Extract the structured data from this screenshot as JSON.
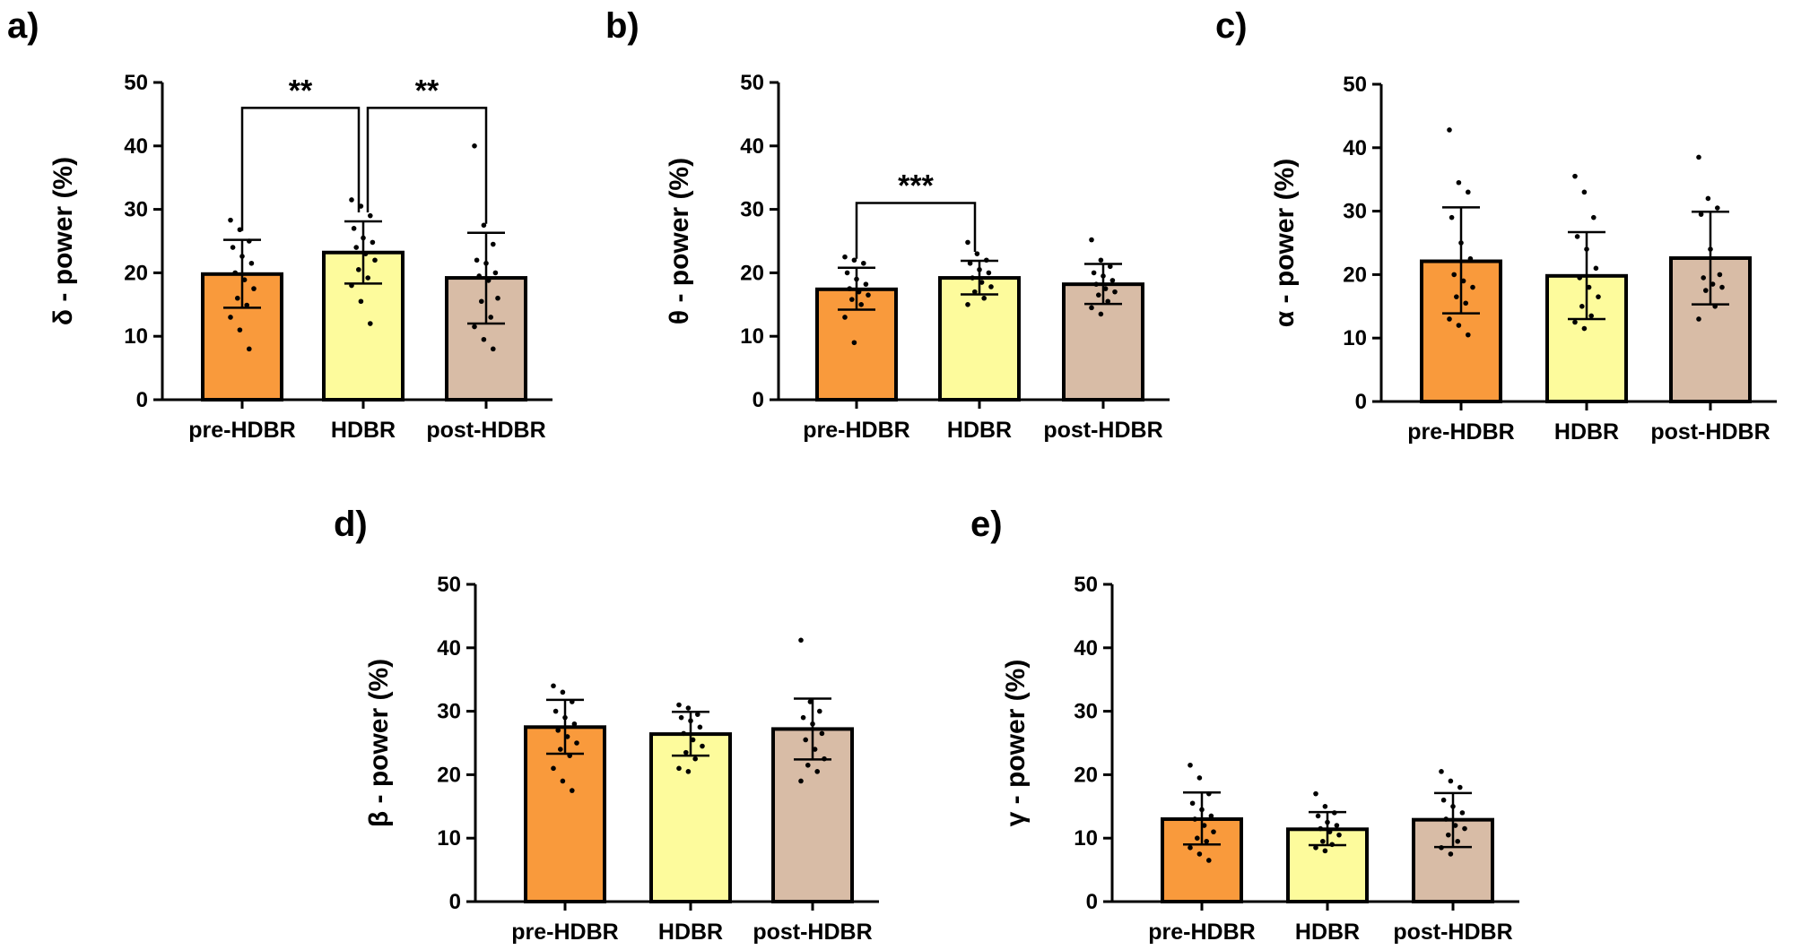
{
  "figure": {
    "panel_count": 5
  },
  "colors": {
    "pre_HDBR": "#f99a3c",
    "HDBR": "#fdfb9c",
    "post_HDBR": "#d8bca6",
    "outline": "#000000"
  },
  "chart_data": [
    {
      "panel": "a)",
      "type": "bar",
      "ylabel": "δ - power (%)",
      "ylim": [
        0,
        50
      ],
      "yticks": [
        "0",
        "10",
        "20",
        "30",
        "40",
        "50"
      ],
      "categories": [
        "pre-HDBR",
        "HDBR",
        "post-HDBR"
      ],
      "values": [
        19.8,
        23.2,
        19.2
      ],
      "error_low": [
        14.5,
        18.3,
        12.0
      ],
      "error_high": [
        25.2,
        28.1,
        26.3
      ],
      "points": [
        [
          28.3,
          26.8,
          25.0,
          24.0,
          22.6,
          21.5,
          20.0,
          18.9,
          17.5,
          16.0,
          14.9,
          13.0,
          11.0,
          8.0
        ],
        [
          31.5,
          30.5,
          29.0,
          27.0,
          25.5,
          24.8,
          24.0,
          23.0,
          22.0,
          20.5,
          19.2,
          18.0,
          15.5,
          12.0
        ],
        [
          40.0,
          27.5,
          24.5,
          22.0,
          21.5,
          20.0,
          19.5,
          18.8,
          16.0,
          15.5,
          13.0,
          11.5,
          9.5,
          8.0
        ]
      ],
      "significance": [
        {
          "from": 0,
          "to": 1,
          "label": "**",
          "y": 46
        },
        {
          "from": 1,
          "to": 2,
          "label": "**",
          "y": 46
        }
      ]
    },
    {
      "panel": "b)",
      "type": "bar",
      "ylabel": "θ - power (%)",
      "ylim": [
        0,
        50
      ],
      "yticks": [
        "0",
        "10",
        "20",
        "30",
        "40",
        "50"
      ],
      "categories": [
        "pre-HDBR",
        "HDBR",
        "post-HDBR"
      ],
      "values": [
        17.4,
        19.2,
        18.2
      ],
      "error_low": [
        14.2,
        16.6,
        15.1
      ],
      "error_high": [
        20.8,
        21.9,
        21.4
      ],
      "points": [
        [
          22.5,
          22.0,
          21.5,
          20.0,
          19.0,
          18.2,
          17.5,
          17.0,
          16.5,
          15.8,
          15.0,
          13.0,
          9.0
        ],
        [
          24.8,
          23.0,
          22.0,
          21.5,
          20.5,
          20.0,
          19.2,
          18.5,
          17.8,
          17.0,
          16.0,
          15.0
        ],
        [
          25.2,
          22.0,
          21.0,
          20.0,
          19.5,
          18.8,
          18.2,
          17.5,
          17.0,
          16.5,
          15.5,
          14.5,
          13.5
        ]
      ],
      "significance": [
        {
          "from": 0,
          "to": 1,
          "label": "***",
          "y": 31
        }
      ]
    },
    {
      "panel": "c)",
      "type": "bar",
      "ylabel": "α - power (%)",
      "ylim": [
        0,
        50
      ],
      "yticks": [
        "0",
        "10",
        "20",
        "30",
        "40",
        "50"
      ],
      "categories": [
        "pre-HDBR",
        "HDBR",
        "post-HDBR"
      ],
      "values": [
        22.1,
        19.8,
        22.6
      ],
      "error_low": [
        13.9,
        13.0,
        15.3
      ],
      "error_high": [
        30.6,
        26.7,
        29.9
      ],
      "points": [
        [
          42.8,
          34.5,
          33.0,
          29.0,
          25.0,
          22.5,
          20.0,
          19.0,
          18.0,
          16.5,
          15.5,
          13.0,
          12.0,
          10.5
        ],
        [
          35.5,
          33.0,
          29.0,
          26.0,
          24.0,
          21.0,
          19.5,
          18.0,
          16.5,
          15.0,
          13.5,
          12.5,
          11.5
        ],
        [
          38.5,
          32.0,
          30.5,
          29.5,
          24.0,
          20.0,
          19.5,
          18.5,
          18.0,
          17.5,
          15.0,
          13.0
        ]
      ],
      "significance": []
    },
    {
      "panel": "d)",
      "type": "bar",
      "ylabel": "β - power (%)",
      "ylim": [
        0,
        50
      ],
      "yticks": [
        "0",
        "10",
        "20",
        "30",
        "40",
        "50"
      ],
      "categories": [
        "pre-HDBR",
        "HDBR",
        "post-HDBR"
      ],
      "values": [
        27.5,
        26.4,
        27.2
      ],
      "error_low": [
        23.3,
        23.0,
        22.4
      ],
      "error_high": [
        31.8,
        29.9,
        32.0
      ],
      "points": [
        [
          34.0,
          33.0,
          31.5,
          30.0,
          29.0,
          28.0,
          27.0,
          26.0,
          25.0,
          24.0,
          23.0,
          21.0,
          19.0,
          17.5
        ],
        [
          31.0,
          30.5,
          29.5,
          29.0,
          28.5,
          27.5,
          26.5,
          25.5,
          24.5,
          23.5,
          22.5,
          21.0,
          20.5
        ],
        [
          41.2,
          31.5,
          30.0,
          29.0,
          28.0,
          26.5,
          25.5,
          24.0,
          22.5,
          21.5,
          20.5,
          19.0
        ]
      ],
      "significance": []
    },
    {
      "panel": "e)",
      "type": "bar",
      "ylabel": "γ - power (%)",
      "ylim": [
        0,
        50
      ],
      "yticks": [
        "0",
        "10",
        "20",
        "30",
        "40",
        "50"
      ],
      "categories": [
        "pre-HDBR",
        "HDBR",
        "post-HDBR"
      ],
      "values": [
        13.0,
        11.4,
        12.9
      ],
      "error_low": [
        9.0,
        8.9,
        8.6
      ],
      "error_high": [
        17.2,
        14.1,
        17.1
      ],
      "points": [
        [
          21.5,
          19.5,
          17.0,
          15.5,
          14.5,
          13.5,
          13.0,
          12.0,
          11.0,
          10.0,
          9.5,
          8.5,
          7.5,
          6.5
        ],
        [
          17.0,
          15.0,
          14.0,
          13.5,
          12.5,
          12.0,
          11.5,
          11.0,
          10.5,
          9.5,
          9.0,
          8.5,
          8.0
        ],
        [
          20.5,
          19.0,
          18.0,
          16.0,
          15.0,
          14.0,
          13.0,
          12.0,
          11.5,
          10.5,
          9.5,
          8.5,
          7.5
        ]
      ],
      "significance": []
    }
  ]
}
